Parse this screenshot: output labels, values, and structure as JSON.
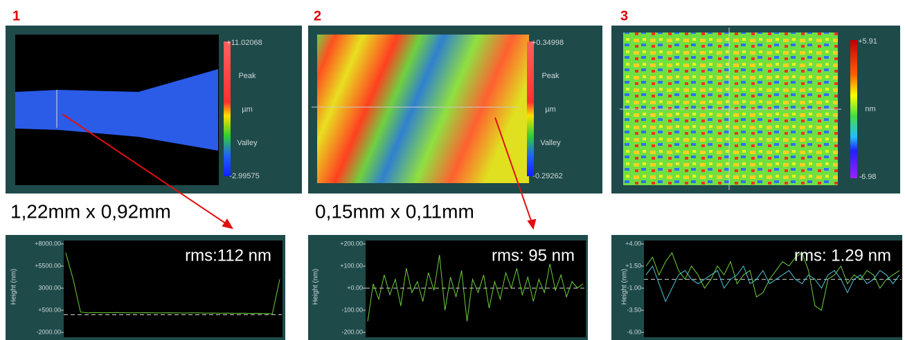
{
  "panels": [
    {
      "number": "1",
      "scale": {
        "max": "+11.02068",
        "peak": "Peak",
        "unit": "µm",
        "valley": "Valley",
        "min": "-2.99575"
      },
      "size": "1,22mm x 0,92mm",
      "profile": {
        "type": "line",
        "y_label": "Height (nm)",
        "annotation": "rms:112 nm",
        "ylim": [
          -2000,
          8000
        ],
        "yticks": [
          {
            "value": 8000,
            "label": "+8000.00"
          },
          {
            "value": 5500,
            "label": "+5500.00"
          },
          {
            "value": 3000,
            "label": "3000.00"
          },
          {
            "value": 500,
            "label": "+500.00"
          },
          {
            "value": -2000,
            "label": "-2000.00"
          }
        ],
        "series": [
          {
            "color": "#6fd13b",
            "values": [
              7000,
              4000,
              300,
              200,
              250,
              220,
              230,
              240,
              220,
              210,
              220,
              230,
              200,
              210,
              220,
              200,
              190,
              200,
              210,
              180,
              190,
              170,
              180,
              160,
              170,
              150,
              160,
              140,
              100,
              4000
            ]
          }
        ]
      }
    },
    {
      "number": "2",
      "scale": {
        "max": "+0.34998",
        "peak": "Peak",
        "unit": "µm",
        "valley": "Valley",
        "min": "-0.29262"
      },
      "size": "0,15mm x 0,11mm",
      "profile": {
        "type": "line",
        "y_label": "Height (nm)",
        "annotation": "rms: 95 nm",
        "ylim": [
          -200,
          200
        ],
        "yticks": [
          {
            "value": 200,
            "label": "+200.00"
          },
          {
            "value": 100,
            "label": "+100.00"
          },
          {
            "value": 0,
            "label": "+0.00"
          },
          {
            "value": -100,
            "label": "-100.00"
          },
          {
            "value": -200,
            "label": "-200.00"
          }
        ],
        "series": [
          {
            "color": "#6fd13b",
            "values": [
              -150,
              20,
              -50,
              60,
              -30,
              40,
              -80,
              90,
              -20,
              30,
              -60,
              70,
              -10,
              150,
              -100,
              50,
              -40,
              80,
              -150,
              40,
              -20,
              60,
              -90,
              30,
              -50,
              70,
              0,
              90,
              -30,
              50,
              -60,
              40,
              -20,
              110,
              -10,
              60,
              -40,
              30,
              0,
              20
            ]
          }
        ]
      }
    },
    {
      "number": "3",
      "scale": {
        "max": "+5.91",
        "unit": "nm",
        "min": "-6.98"
      },
      "profile": {
        "type": "line",
        "y_label": "Height (nm)",
        "annotation": "rms: 1.29 nm",
        "ylim": [
          -6,
          4
        ],
        "yticks": [
          {
            "value": 4,
            "label": "+4.00"
          },
          {
            "value": 1.5,
            "label": "+1.50"
          },
          {
            "value": -1,
            "label": "-1.00"
          },
          {
            "value": -3.5,
            "label": "-3.50"
          },
          {
            "value": -6,
            "label": "-6.00"
          }
        ],
        "series": [
          {
            "color": "#6fd13b",
            "values": [
              1.5,
              2.5,
              0.5,
              2,
              3,
              1,
              0,
              1.5,
              0.5,
              -1,
              0,
              1.5,
              0.5,
              2,
              -0.5,
              0.5,
              1,
              -2,
              -1.5,
              0,
              1,
              2,
              1.5,
              2.5,
              3,
              1,
              -3,
              -3.5,
              0,
              0.5,
              1.5,
              -0.5,
              0.5,
              0,
              1,
              0.5,
              -1,
              0,
              0.5,
              1
            ]
          },
          {
            "color": "#4fc6d6",
            "values": [
              0.5,
              1.5,
              -0.5,
              -2.5,
              -1,
              0.5,
              1,
              0,
              -0.5,
              0,
              0.5,
              1,
              -1,
              0,
              0.5,
              1.5,
              -0.5,
              0,
              1,
              -0.5,
              0,
              0.5,
              1,
              0,
              -0.5,
              0.5,
              0,
              -1,
              0.5,
              1,
              0,
              -1.5,
              0,
              0.5,
              -0.5,
              0,
              1,
              0.5,
              -0.5,
              0.5
            ]
          }
        ]
      }
    }
  ]
}
